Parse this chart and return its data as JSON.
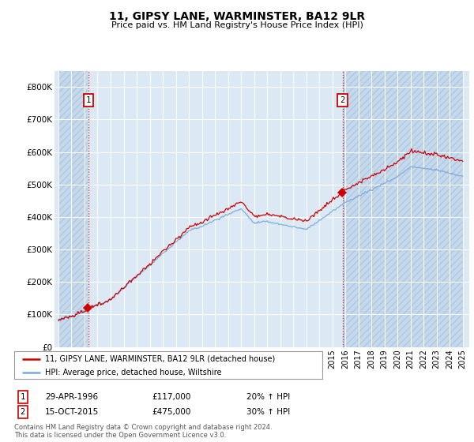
{
  "title": "11, GIPSY LANE, WARMINSTER, BA12 9LR",
  "subtitle": "Price paid vs. HM Land Registry's House Price Index (HPI)",
  "ylim": [
    0,
    850000
  ],
  "yticks": [
    0,
    100000,
    200000,
    300000,
    400000,
    500000,
    600000,
    700000,
    800000
  ],
  "ytick_labels": [
    "£0",
    "£100K",
    "£200K",
    "£300K",
    "£400K",
    "£500K",
    "£600K",
    "£700K",
    "£800K"
  ],
  "background_color": "#ffffff",
  "plot_bg_color": "#dce9f5",
  "grid_color": "#c8d8ea",
  "transaction1": {
    "date_num": 1996.29,
    "price": 117000,
    "label": "1",
    "pct": "20%",
    "date_str": "29-APR-1996"
  },
  "transaction2": {
    "date_num": 2015.79,
    "price": 475000,
    "label": "2",
    "pct": "30%",
    "date_str": "15-OCT-2015"
  },
  "property_line_color": "#cc0000",
  "hpi_line_color": "#7aaadd",
  "vline_color": "#cc0000",
  "marker_color": "#cc0000",
  "legend_label1": "11, GIPSY LANE, WARMINSTER, BA12 9LR (detached house)",
  "legend_label2": "HPI: Average price, detached house, Wiltshire",
  "footer1": "Contains HM Land Registry data © Crown copyright and database right 2024.",
  "footer2": "This data is licensed under the Open Government Licence v3.0.",
  "xtick_start": 1994,
  "xtick_end": 2025
}
